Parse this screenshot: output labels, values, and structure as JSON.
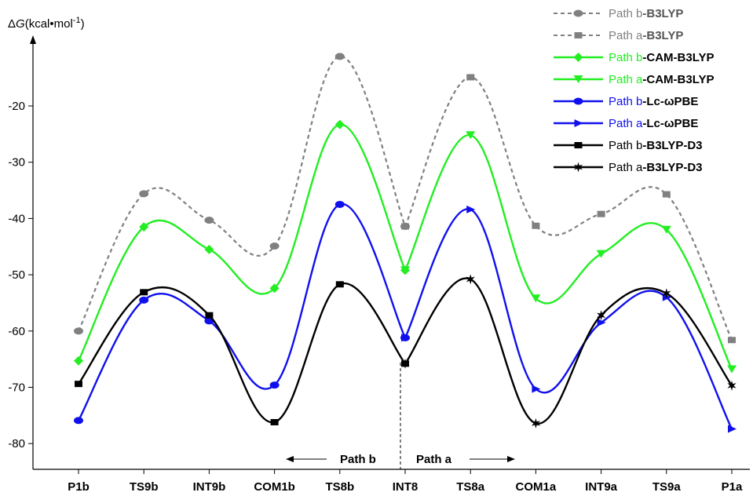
{
  "chart_data": {
    "type": "line",
    "ylabel": "ΔG(kcal•mol⁻¹)",
    "ylabel_parts": {
      "delta": "Δ",
      "g": "G",
      "unit": "(kcal•mol",
      "sup": "-1",
      "close": ")"
    },
    "ylim": [
      -85,
      -9
    ],
    "yticks": [
      -80,
      -70,
      -60,
      -50,
      -40,
      -30,
      -20
    ],
    "grid": false,
    "legend_position": "top-right",
    "categories": [
      "P1b",
      "TS9b",
      "INT9b",
      "COM1b",
      "TS8b",
      "INT8",
      "TS8a",
      "COM1a",
      "INT9a",
      "TS9a",
      "P1a"
    ],
    "series": [
      {
        "name": "Path b-B3LYP",
        "name_prefix": "Path b",
        "name_method": "-B3LYP",
        "color": "#808080",
        "dashed": true,
        "marker": "circle",
        "x": [
          0,
          1,
          2,
          3,
          4,
          5
        ],
        "values": [
          -60.0,
          -35.6,
          -40.3,
          -44.9,
          -11.2,
          -41.4
        ]
      },
      {
        "name": "Path a-B3LYP",
        "name_prefix": "Path a",
        "name_method": "-B3LYP",
        "color": "#808080",
        "dashed": true,
        "marker": "square",
        "x": [
          5,
          6,
          7,
          8,
          9,
          10
        ],
        "values": [
          -41.4,
          -14.9,
          -41.3,
          -39.2,
          -35.7,
          -61.6
        ]
      },
      {
        "name": "Path b-CAM-B3LYP",
        "name_prefix": "Path b",
        "name_method": "-CAM-B3LYP",
        "color": "#22ee22",
        "dashed": false,
        "marker": "diamond",
        "x": [
          0,
          1,
          2,
          3,
          4,
          5
        ],
        "values": [
          -65.3,
          -41.5,
          -45.5,
          -52.4,
          -23.3,
          -49.2
        ]
      },
      {
        "name": "Path a-CAM-B3LYP",
        "name_prefix": "Path a",
        "name_method": "-CAM-B3LYP",
        "color": "#22ee22",
        "dashed": false,
        "marker": "triangle-down",
        "x": [
          5,
          6,
          7,
          8,
          9,
          10
        ],
        "values": [
          -49.2,
          -25.2,
          -54.2,
          -46.3,
          -42.0,
          -66.8
        ]
      },
      {
        "name": "Path b-Lc-ωPBE",
        "name_prefix": "Path b",
        "name_method": "-Lc-ωPBE",
        "color": "#1010ee",
        "dashed": false,
        "marker": "circle",
        "x": [
          0,
          1,
          2,
          3,
          4,
          5
        ],
        "values": [
          -75.9,
          -54.5,
          -58.2,
          -69.6,
          -37.5,
          -61.2
        ]
      },
      {
        "name": "Path a-Lc-ωPBE",
        "name_prefix": "Path a",
        "name_method": "-Lc-ωPBE",
        "color": "#1010ee",
        "dashed": false,
        "marker": "triangle-right",
        "x": [
          5,
          6,
          7,
          8,
          9,
          10
        ],
        "values": [
          -61.2,
          -38.4,
          -70.3,
          -58.5,
          -54.0,
          -77.4
        ]
      },
      {
        "name": "Path b-B3LYP-D3",
        "name_prefix": "Path b",
        "name_method": "-B3LYP-D3",
        "color": "#000000",
        "dashed": false,
        "marker": "square",
        "x": [
          0,
          1,
          2,
          3,
          4,
          5
        ],
        "values": [
          -69.4,
          -53.1,
          -57.2,
          -76.2,
          -51.7,
          -65.8
        ]
      },
      {
        "name": "Path a-B3LYP-D3",
        "name_prefix": "Path a",
        "name_method": "-B3LYP-D3",
        "color": "#000000",
        "dashed": false,
        "marker": "star",
        "x": [
          5,
          6,
          7,
          8,
          9,
          10
        ],
        "values": [
          -65.8,
          -50.8,
          -76.4,
          -57.2,
          -53.3,
          -69.7
        ]
      }
    ],
    "annotations": {
      "path_b": "Path b",
      "path_a": "Path a"
    }
  }
}
